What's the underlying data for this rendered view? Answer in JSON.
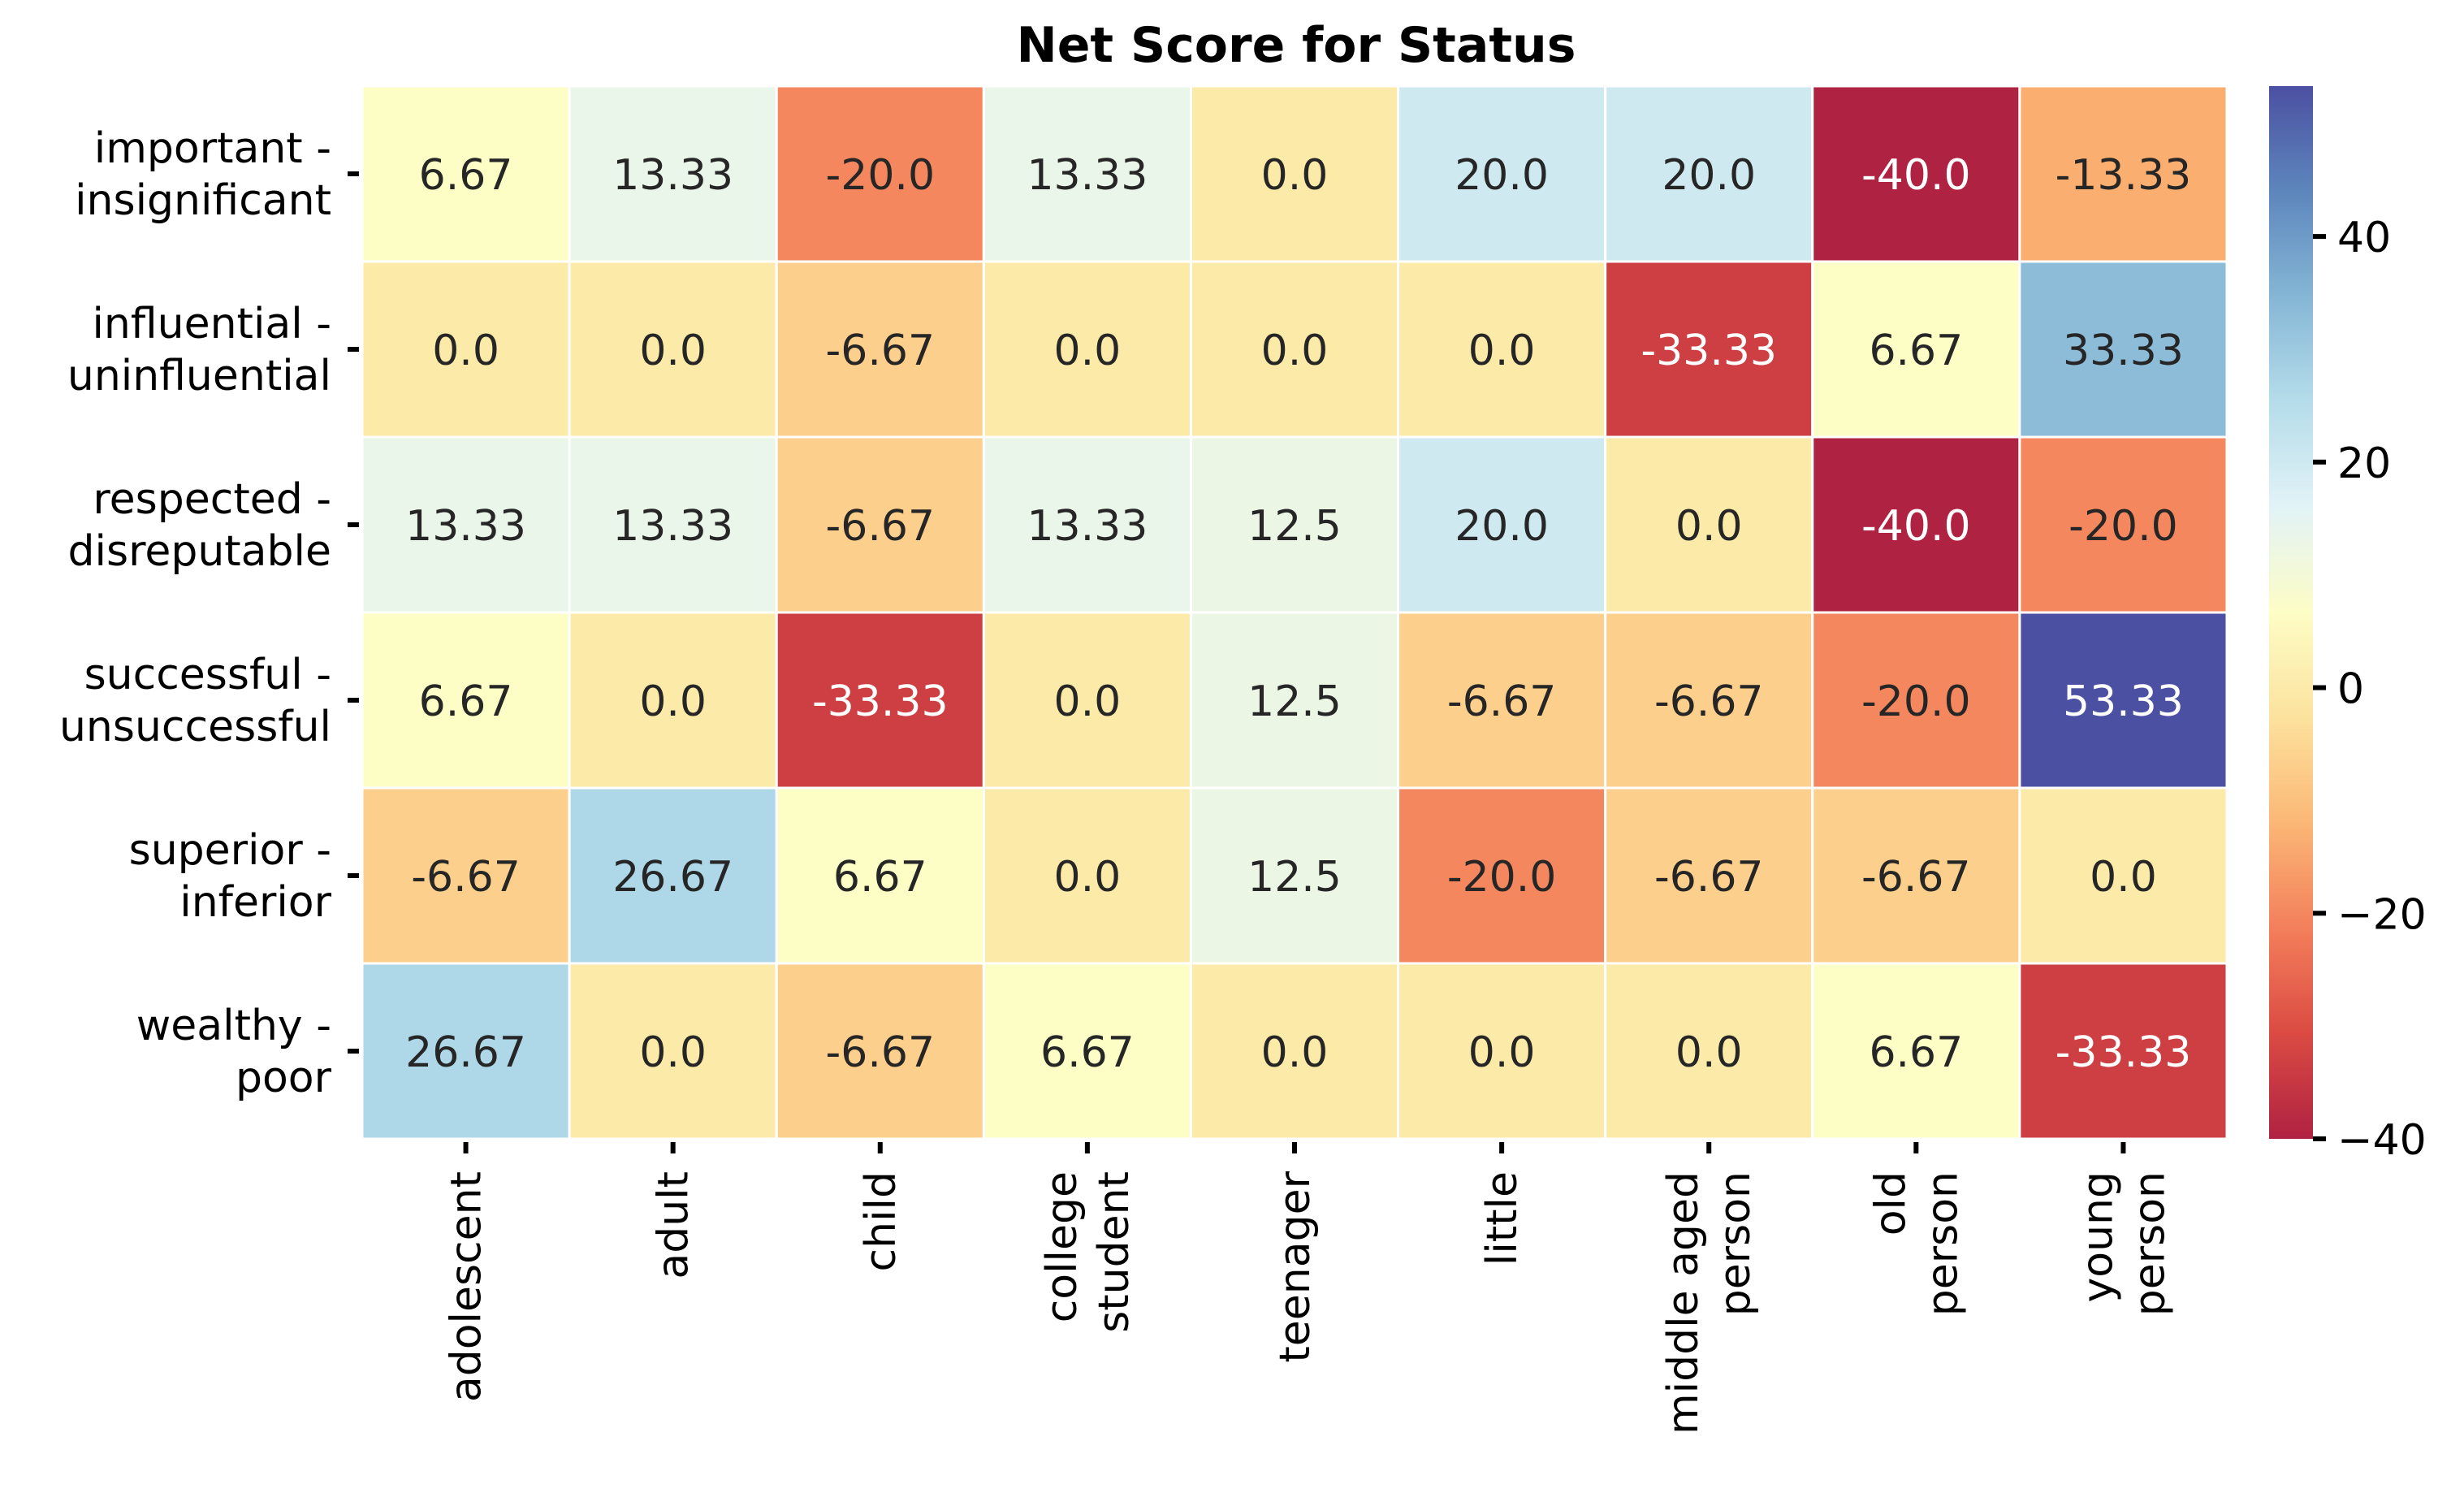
{
  "chart_data": {
    "type": "heatmap",
    "title": "Net Score for Status",
    "xlabel": "",
    "ylabel": "",
    "columns": [
      [
        "adolescent"
      ],
      [
        "adult"
      ],
      [
        "child"
      ],
      [
        "college",
        "student"
      ],
      [
        "teenager"
      ],
      [
        "little"
      ],
      [
        "middle aged",
        "person"
      ],
      [
        "old",
        "person"
      ],
      [
        "young",
        "person"
      ]
    ],
    "rows": [
      [
        "important -",
        "insignificant"
      ],
      [
        "influential -",
        "uninfluential"
      ],
      [
        "respected -",
        "disreputable"
      ],
      [
        "successful -",
        "unsuccessful"
      ],
      [
        "superior -",
        "inferior"
      ],
      [
        "wealthy -",
        "poor"
      ]
    ],
    "values": [
      [
        6.67,
        13.33,
        -20.0,
        13.33,
        0.0,
        20.0,
        20.0,
        -40.0,
        -13.33
      ],
      [
        0.0,
        0.0,
        -6.67,
        0.0,
        0.0,
        0.0,
        -33.33,
        6.67,
        33.33
      ],
      [
        13.33,
        13.33,
        -6.67,
        13.33,
        12.5,
        20.0,
        0.0,
        -40.0,
        -20.0
      ],
      [
        6.67,
        0.0,
        -33.33,
        0.0,
        12.5,
        -6.67,
        -6.67,
        -20.0,
        53.33
      ],
      [
        -6.67,
        26.67,
        6.67,
        0.0,
        12.5,
        -20.0,
        -6.67,
        -6.67,
        0.0
      ],
      [
        26.67,
        0.0,
        -6.67,
        6.67,
        0.0,
        0.0,
        0.0,
        6.67,
        -33.33
      ]
    ],
    "cell_labels": [
      [
        "6.67",
        "13.33",
        "-20.0",
        "13.33",
        "0.0",
        "20.0",
        "20.0",
        "-40.0",
        "-13.33"
      ],
      [
        "0.0",
        "0.0",
        "-6.67",
        "0.0",
        "0.0",
        "0.0",
        "-33.33",
        "6.67",
        "33.33"
      ],
      [
        "13.33",
        "13.33",
        "-6.67",
        "13.33",
        "12.5",
        "20.0",
        "0.0",
        "-40.0",
        "-20.0"
      ],
      [
        "6.67",
        "0.0",
        "-33.33",
        "0.0",
        "12.5",
        "-6.67",
        "-6.67",
        "-20.0",
        "53.33"
      ],
      [
        "-6.67",
        "26.67",
        "6.67",
        "0.0",
        "12.5",
        "-20.0",
        "-6.67",
        "-6.67",
        "0.0"
      ],
      [
        "26.67",
        "0.0",
        "-6.67",
        "6.67",
        "0.0",
        "0.0",
        "0.0",
        "6.67",
        "-33.33"
      ]
    ],
    "colorbar": {
      "range": [
        -40,
        53.33
      ],
      "ticks": [
        40,
        20,
        0,
        -20,
        -40
      ],
      "tick_labels": [
        "40",
        "20",
        "0",
        "−20",
        "−40"
      ]
    },
    "colormap": "RdYlBu",
    "colors": {
      "low": "#a6213f",
      "high": "#3b5fb6",
      "text_light": "#ffffff",
      "text_dark": "#262626",
      "grid_line": "#ffffff"
    },
    "grid": false,
    "legend": "colorbar-right"
  }
}
